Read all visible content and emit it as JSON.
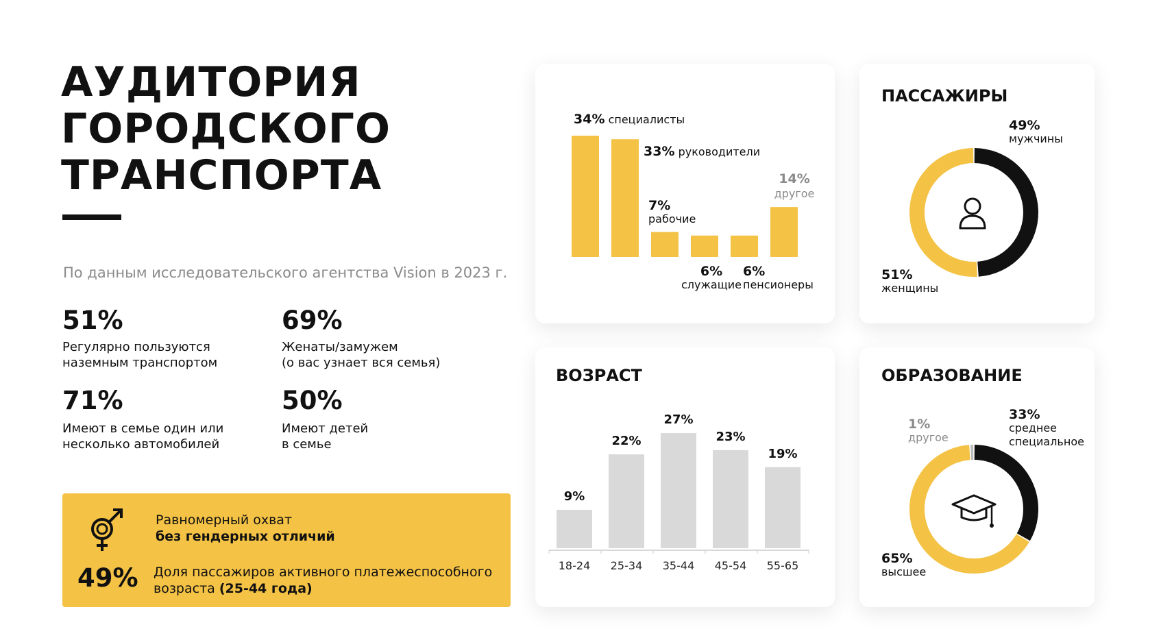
{
  "title_lines": [
    "АУДИТОРИЯ",
    "ГОРОДСКОГО",
    "ТРАНСПОРТА"
  ],
  "subtitle": "По данным исследовательского агентства Vision в 2023 г.",
  "stats": [
    {
      "value": "51%",
      "desc": [
        "Регулярно пользуются",
        "наземным транспортом"
      ]
    },
    {
      "value": "69%",
      "desc": [
        "Женаты/замужем",
        "(о вас узнает вся семья)"
      ]
    },
    {
      "value": "71%",
      "desc": [
        "Имеют в семье один или",
        "несколько автомобилей"
      ]
    },
    {
      "value": "50%",
      "desc": [
        "Имеют детей",
        "в семье"
      ]
    }
  ],
  "highlight": {
    "icon": "gender-icon",
    "line1": "Равномерный охват",
    "line2": "без гендерных отличий",
    "value": "49%",
    "desc1": "Доля пассажиров активного платежеспособного",
    "desc2_prefix": "возраста ",
    "desc2_bold": "(25-44 года)"
  },
  "colors": {
    "yellow": "#f4c245",
    "black": "#111111",
    "gray_bar": "#d9d9d9",
    "muted": "#8a8a8a"
  },
  "chart_data": [
    {
      "type": "bar",
      "title": "",
      "categories": [
        "специалисты",
        "руководители",
        "рабочие",
        "служащие",
        "пенсионеры",
        "другое"
      ],
      "values": [
        34,
        33,
        7,
        6,
        6,
        14
      ],
      "labels": [
        "34%",
        "33%",
        "7%",
        "6%",
        "6%",
        "14%"
      ],
      "color": "#f4c245",
      "ylim": [
        0,
        34
      ]
    },
    {
      "type": "pie",
      "title": "ПАССАЖИРЫ",
      "icon": "user-icon",
      "categories": [
        "мужчины",
        "женщины"
      ],
      "values": [
        49,
        51
      ],
      "labels": [
        "49%",
        "51%"
      ],
      "colors": [
        "#111111",
        "#f4c245"
      ]
    },
    {
      "type": "bar",
      "title": "ВОЗРАСТ",
      "categories": [
        "18-24",
        "25-34",
        "35-44",
        "45-54",
        "55-65"
      ],
      "values": [
        9,
        22,
        27,
        23,
        19
      ],
      "labels": [
        "9%",
        "22%",
        "27%",
        "23%",
        "19%"
      ],
      "color": "#d9d9d9",
      "ylim": [
        0,
        27
      ]
    },
    {
      "type": "pie",
      "title": "ОБРАЗОВАНИЕ",
      "icon": "graduation-cap-icon",
      "categories": [
        "другое",
        "среднее специальное",
        "высшее"
      ],
      "values": [
        1,
        33,
        65
      ],
      "labels": [
        "1%",
        "33%",
        "65%"
      ],
      "colors": [
        "#bbbbbb",
        "#111111",
        "#f4c245"
      ]
    }
  ]
}
